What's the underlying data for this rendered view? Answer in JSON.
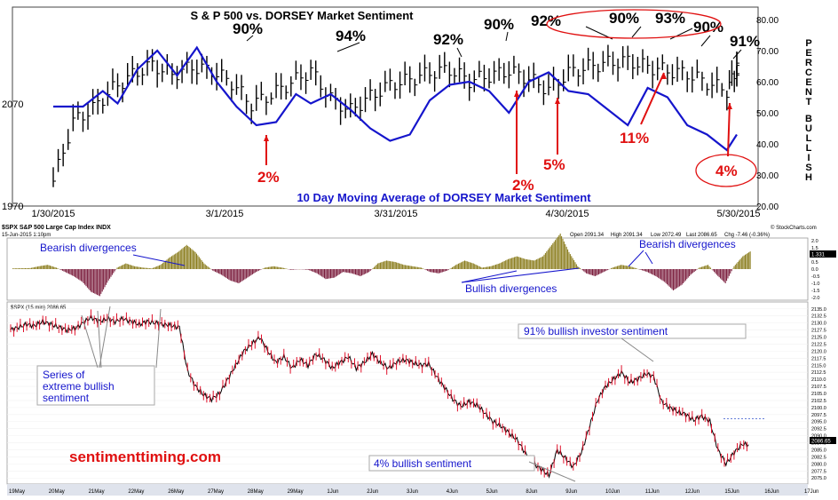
{
  "chart_data": [
    {
      "type": "line",
      "title": "S & P 500 vs. DORSEY Market Sentiment",
      "subtitle": "10 Day Moving Average of DORSEY Market Sentiment",
      "ylabel_right": "PERCENT BULLISH",
      "x_ticks": [
        "1/30/2015",
        "3/1/2015",
        "3/31/2015",
        "4/30/2015",
        "5/30/2015"
      ],
      "y_left_ticks": [
        "2070",
        "1970"
      ],
      "y_right_ticks": [
        "80.00",
        "70.00",
        "60.00",
        "50.00",
        "40.00",
        "30.00",
        "20.00"
      ],
      "y_right_range": [
        20,
        80
      ],
      "series": [
        {
          "name": "10 Day Moving Average of DORSEY Market Sentiment",
          "color": "#1515cc",
          "x": [
            0,
            6,
            10,
            13,
            17,
            21,
            25,
            29,
            33,
            37,
            41,
            45,
            49,
            52,
            56,
            60,
            64,
            68,
            72,
            76,
            80,
            84,
            88,
            92,
            96,
            100,
            104,
            108,
            112,
            116,
            120,
            124,
            128,
            132,
            136,
            138
          ],
          "values": [
            52,
            52,
            57,
            53,
            64,
            70,
            62,
            71,
            60,
            52,
            46,
            47,
            56,
            53,
            56,
            51,
            45,
            41,
            43,
            54,
            59,
            60,
            57,
            50,
            60,
            63,
            57,
            56,
            51,
            46,
            58,
            55,
            46,
            43,
            38,
            43
          ]
        },
        {
          "name": "S&P 500",
          "color": "#000000",
          "style": "hlc-bars",
          "x": [
            0,
            4,
            8,
            12,
            16,
            20,
            24,
            28,
            32,
            36,
            40,
            44,
            48,
            52,
            56,
            60,
            64,
            68,
            72,
            76,
            80,
            84,
            88,
            92,
            96,
            100,
            104,
            108,
            112,
            116,
            120,
            124,
            128,
            132,
            136,
            138
          ],
          "values": [
            1995,
            2055,
            2068,
            2088,
            2102,
            2112,
            2102,
            2110,
            2106,
            2094,
            2072,
            2082,
            2094,
            2106,
            2078,
            2066,
            2080,
            2092,
            2097,
            2104,
            2107,
            2096,
            2101,
            2106,
            2098,
            2087,
            2104,
            2110,
            2114,
            2116,
            2110,
            2106,
            2103,
            2094,
            2086,
            2108
          ]
        }
      ],
      "annotations_black": [
        "90%",
        "94%",
        "92%",
        "90%",
        "92%",
        "90%",
        "93%",
        "90%",
        "91%"
      ],
      "annotations_red": [
        "2%",
        "2%",
        "5%",
        "11%",
        "4%"
      ]
    },
    {
      "type": "line",
      "title": "$SPX S&P 500 Large Cap Index INDX",
      "date": "15-Jun-2015 1:10pm",
      "open": "Open 2091.34",
      "high": "High 2091.34",
      "low": "Low 2072.49",
      "last": "Last 2086.65",
      "chg": "Chg -7.46 (-0.36%)",
      "source": "© StockCharts.com",
      "panel_label": "$SPX (15 min) 2086.65",
      "indicator_ticks": [
        "2.0",
        "1.5",
        "1.0",
        "0.5",
        "0.0",
        "-0.5",
        "-1.0",
        "-1.5",
        "-2.0"
      ],
      "indicator_range": [
        -2.0,
        2.0
      ],
      "indicator_last": "1.331",
      "indicator_values": [
        0.05,
        0.06,
        0.07,
        0.2,
        0.3,
        0.1,
        -0.2,
        -0.5,
        -0.9,
        -1.6,
        -1.9,
        -0.8,
        0.1,
        0.4,
        0.2,
        0.1,
        0.05,
        0.3,
        0.8,
        1.2,
        1.7,
        1.2,
        0.4,
        -0.1,
        -0.4,
        -0.8,
        -1.0,
        -0.6,
        -0.2,
        0.1,
        0.2,
        0.1,
        -0.05,
        0.0,
        -0.05,
        -0.3,
        -0.7,
        -0.6,
        -0.2,
        -0.3,
        -0.5,
        -0.2,
        0.4,
        0.6,
        0.5,
        0.3,
        0.2,
        0.1,
        -0.2,
        -0.3,
        -0.1,
        0.3,
        0.6,
        0.4,
        0.1,
        0.2,
        0.4,
        0.7,
        0.9,
        0.7,
        0.6,
        0.9,
        1.7,
        2.5,
        1.2,
        0.2,
        -0.3,
        -0.5,
        -0.2,
        0.1,
        0.3,
        0.2,
        0.0,
        -0.2,
        -0.5,
        -0.9,
        -1.5,
        -1.1,
        -0.4,
        0.1,
        0.3,
        -0.4,
        -1.0,
        0.2,
        0.9,
        1.3
      ],
      "price_ticks": [
        "2135.0",
        "2132.5",
        "2130.0",
        "2127.5",
        "2125.0",
        "2122.5",
        "2120.0",
        "2117.5",
        "2115.0",
        "2112.5",
        "2110.0",
        "2107.5",
        "2105.0",
        "2102.5",
        "2100.0",
        "2097.5",
        "2095.0",
        "2092.5",
        "2090.0",
        "2087.5",
        "2085.0",
        "2082.5",
        "2080.0",
        "2077.5",
        "2075.0"
      ],
      "price_range": [
        2073.5,
        2136.5
      ],
      "price_last": "2086.65",
      "price_values": [
        2127.5,
        2128.5,
        2129.5,
        2129.0,
        2130.5,
        2129.5,
        2128.5,
        2127.5,
        2128.0,
        2130.0,
        2132.0,
        2130.5,
        2131.5,
        2130.5,
        2131.5,
        2130.5,
        2129.5,
        2130.5,
        2130.0,
        2129.5,
        2129.0,
        2128.5,
        2113.0,
        2107.5,
        2104.5,
        2103.0,
        2105.0,
        2110.0,
        2115.0,
        2120.0,
        2122.5,
        2125.0,
        2120.0,
        2116.0,
        2118.0,
        2114.0,
        2117.0,
        2115.0,
        2119.0,
        2117.0,
        2114.0,
        2116.0,
        2118.0,
        2114.0,
        2116.0,
        2119.0,
        2116.0,
        2114.0,
        2116.0,
        2117.0,
        2116.0,
        2115.0,
        2115.5,
        2111.0,
        2107.0,
        2103.0,
        2100.5,
        2102.0,
        2101.0,
        2098.0,
        2095.0,
        2093.5,
        2091.0,
        2088.5,
        2084.0,
        2080.5,
        2078.0,
        2076.0,
        2085.0,
        2082.0,
        2079.0,
        2084.0,
        2093.0,
        2102.5,
        2107.5,
        2110.0,
        2112.5,
        2109.0,
        2110.0,
        2112.0,
        2111.0,
        2102.0,
        2100.0,
        2098.5,
        2097.5,
        2095.5,
        2097.0,
        2095.0,
        2085.0,
        2080.0,
        2084.0,
        2087.0,
        2086.65
      ],
      "x_ticks": [
        "19May",
        "20May",
        "21May",
        "22May",
        "26May",
        "27May",
        "28May",
        "29May",
        "1Jun",
        "2Jun",
        "3Jun",
        "4Jun",
        "5Jun",
        "8Jun",
        "9Jun",
        "10Jun",
        "11Jun",
        "12Jun",
        "15Jun",
        "16Jun",
        "17Jun"
      ],
      "annotations": [
        "Bearish divergences",
        "Bearish divergences",
        "Bullish divergences",
        "91% bullish investor sentiment",
        "Series of extreme bullish sentiment",
        "4% bullish sentiment"
      ],
      "watermark": "sentimenttiming.com"
    }
  ]
}
